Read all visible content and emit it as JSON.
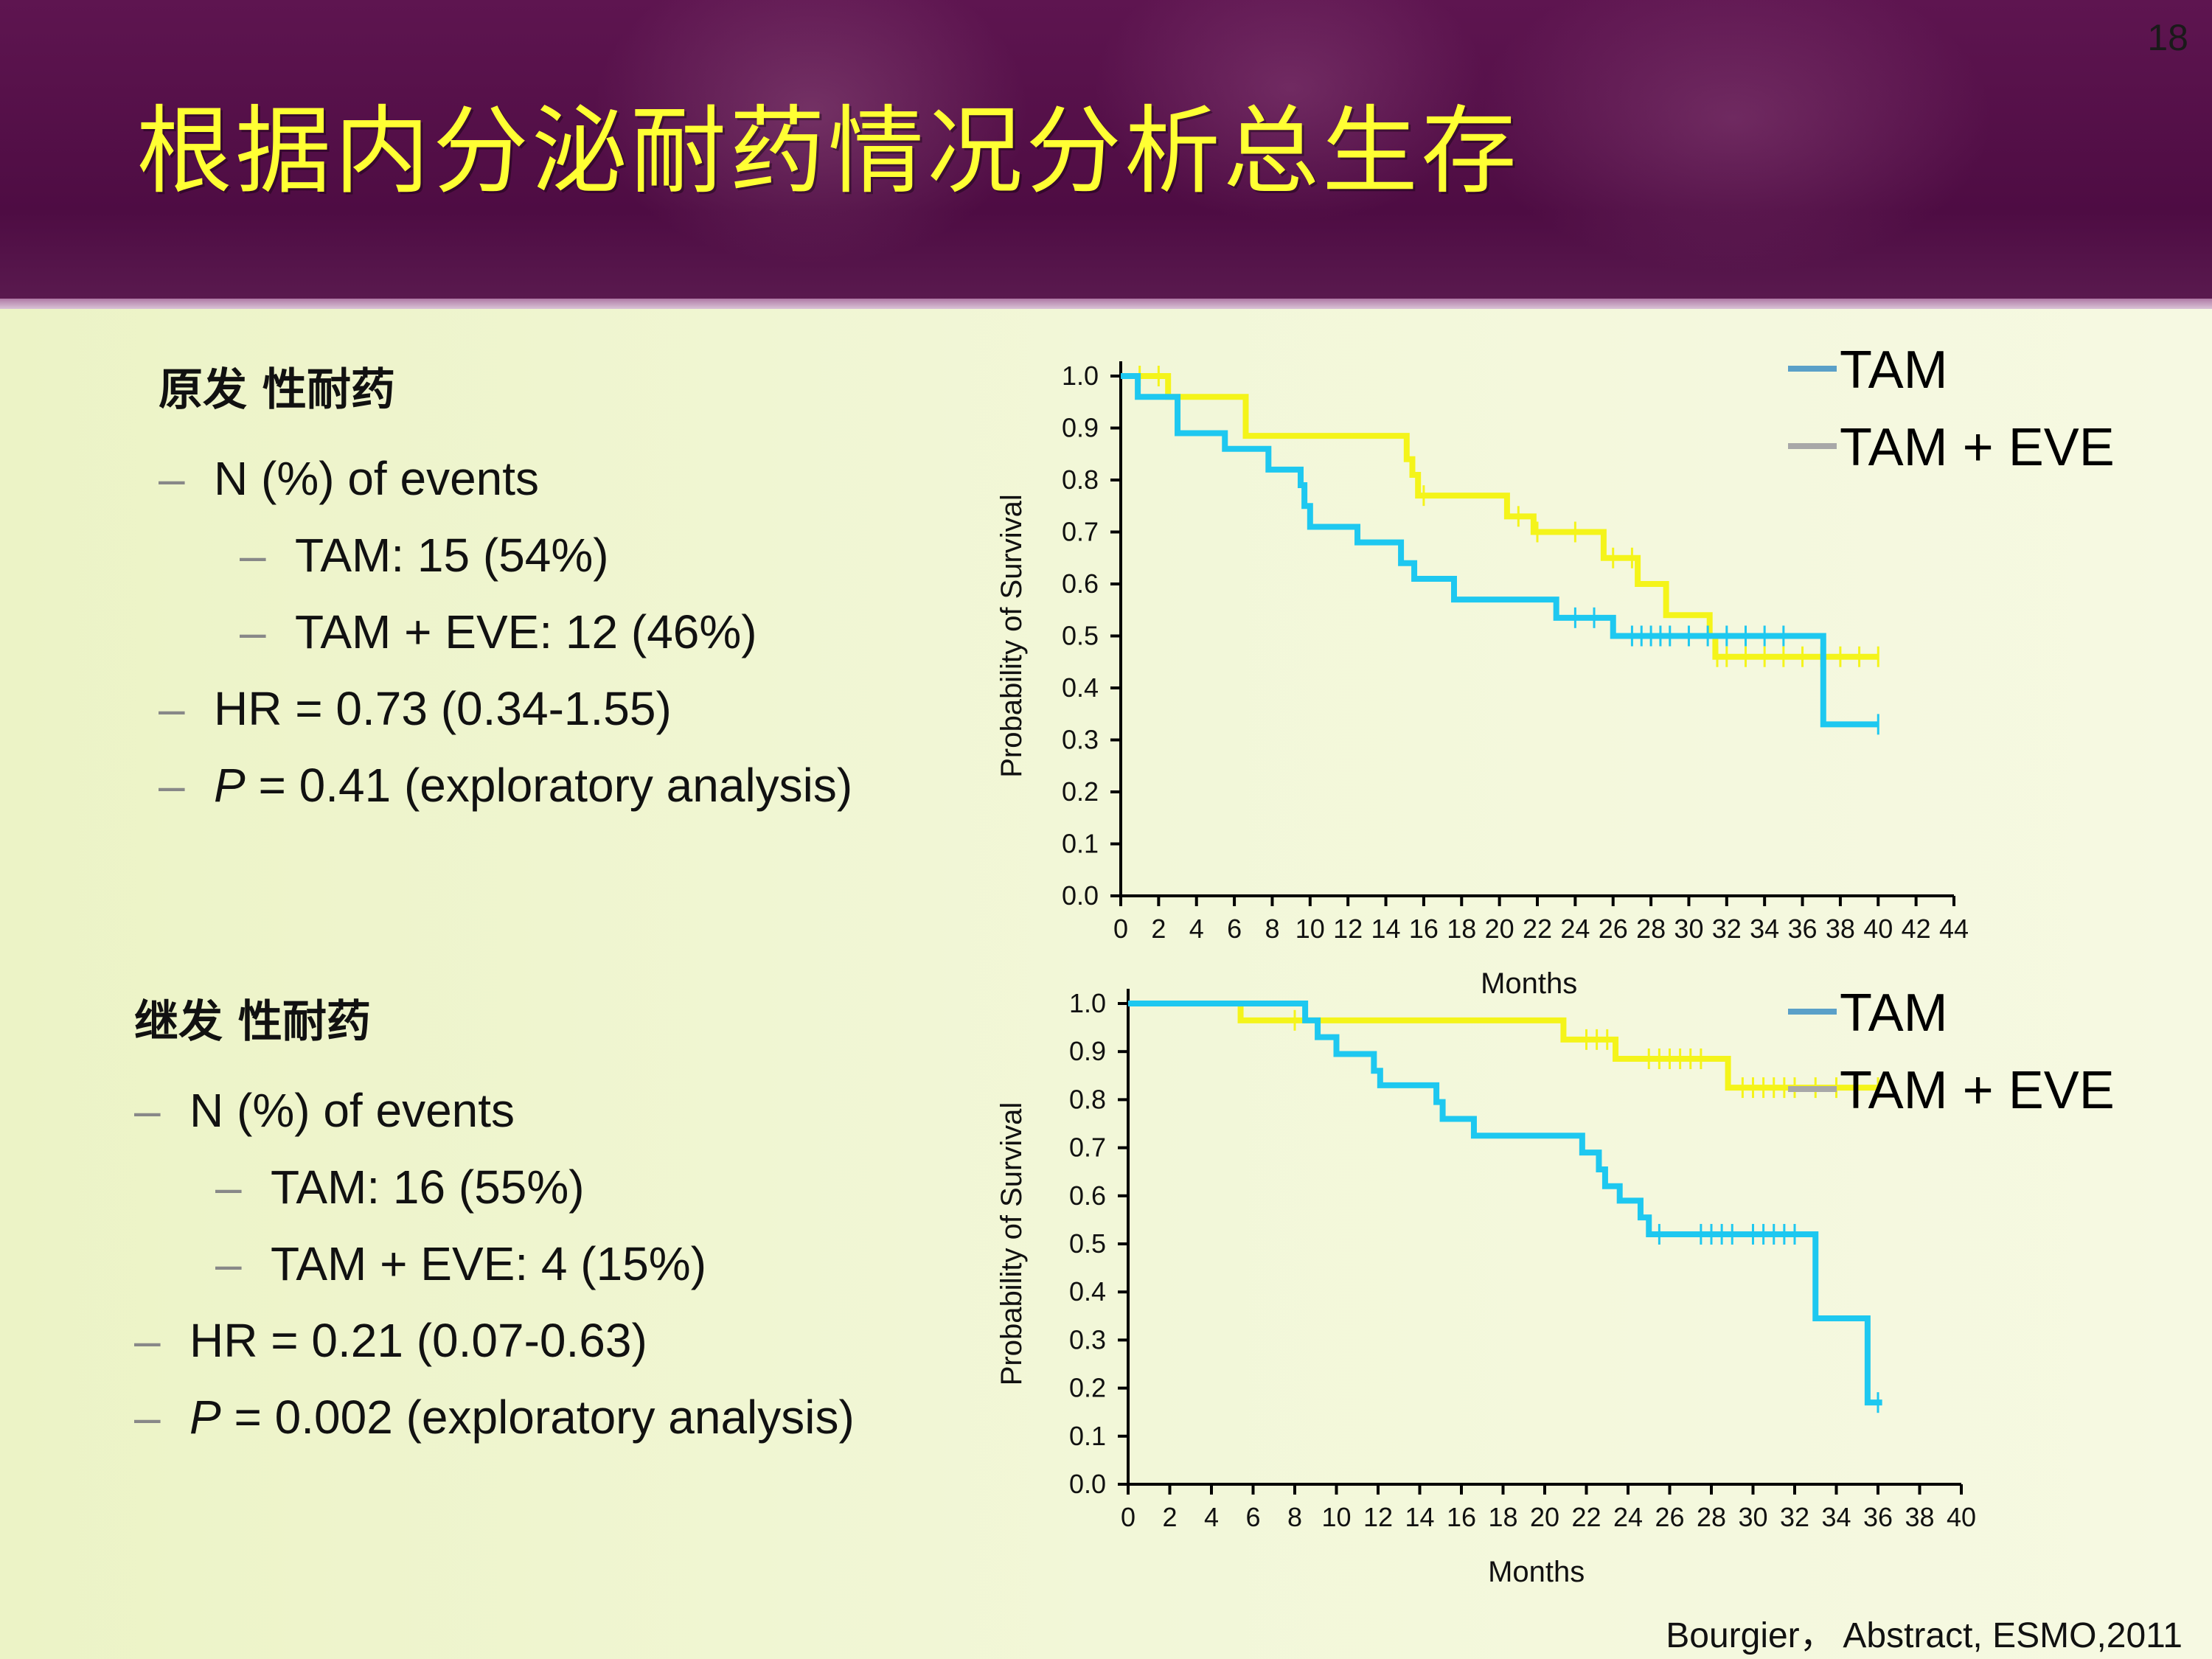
{
  "page_number": "18",
  "title": "根据内分泌耐药情况分析总生存",
  "citation": "Bourgier， Abstract, ESMO,2011",
  "colors": {
    "title": "#ffff33",
    "tam_curve": "#1ec8f0",
    "tam_eve_curve": "#f4f41a",
    "legend_tam": "#5aa0c8",
    "legend_tam_eve": "#a8a8a8"
  },
  "sections": [
    {
      "heading": "原发 性耐药",
      "bullets": [
        {
          "level": 1,
          "dash": "–",
          "text": "N (%) of events"
        },
        {
          "level": 2,
          "dash": "–",
          "text": "TAM: 15 (54%)"
        },
        {
          "level": 2,
          "dash": "–",
          "text": "TAM + EVE: 12 (46%)"
        },
        {
          "level": 1,
          "dash": "–",
          "text": "HR = 0.73 (0.34-1.55)"
        },
        {
          "level": 1,
          "dash": "–",
          "italic": "P",
          "text": " = 0.41 (exploratory analysis)"
        }
      ]
    },
    {
      "heading": "继发 性耐药",
      "bullets": [
        {
          "level": 1,
          "dash": "–",
          "text": "N (%) of events"
        },
        {
          "level": 2,
          "dash": "–",
          "text": "TAM: 16 (55%)"
        },
        {
          "level": 2,
          "dash": "–",
          "text": "TAM + EVE: 4 (15%)"
        },
        {
          "level": 1,
          "dash": "–",
          "text": "HR = 0.21 (0.07-0.63)"
        },
        {
          "level": 1,
          "dash": "–",
          "italic": "P",
          "text": " = 0.002  (exploratory analysis)"
        }
      ]
    }
  ],
  "chart_data": [
    {
      "type": "line",
      "subtype": "kaplan-meier step",
      "xlabel": "Months",
      "ylabel": "Probability of Survival",
      "xlim": [
        0,
        44
      ],
      "ylim": [
        0,
        1.0
      ],
      "x_ticks": [
        0,
        2,
        4,
        6,
        8,
        10,
        12,
        14,
        16,
        18,
        20,
        22,
        24,
        26,
        28,
        30,
        32,
        34,
        36,
        38,
        40,
        42,
        44
      ],
      "y_ticks": [
        "0.0",
        "0.1",
        "0.2",
        "0.3",
        "0.4",
        "0.5",
        "0.6",
        "0.7",
        "0.8",
        "0.9",
        "1.0"
      ],
      "legend": {
        "position": "top-right",
        "entries": [
          "TAM",
          "TAM + EVE"
        ]
      },
      "series": [
        {
          "name": "TAM",
          "color": "#1ec8f0",
          "steps": [
            [
              0,
              1.0
            ],
            [
              0.9,
              0.96
            ],
            [
              3.0,
              0.89
            ],
            [
              5.5,
              0.86
            ],
            [
              7.8,
              0.82
            ],
            [
              9.5,
              0.79
            ],
            [
              9.7,
              0.75
            ],
            [
              10.0,
              0.71
            ],
            [
              12.5,
              0.68
            ],
            [
              14.8,
              0.64
            ],
            [
              15.5,
              0.61
            ],
            [
              17.6,
              0.57
            ],
            [
              23.0,
              0.535
            ],
            [
              26.0,
              0.5
            ],
            [
              37.0,
              0.5
            ],
            [
              37.1,
              0.33
            ],
            [
              40.0,
              0.33
            ]
          ],
          "censored": [
            24,
            25,
            27,
            27.5,
            28,
            28.5,
            29,
            30,
            31,
            32,
            33,
            34,
            35,
            40
          ]
        },
        {
          "name": "TAM + EVE",
          "color": "#f4f41a",
          "steps": [
            [
              0,
              1.0
            ],
            [
              2.5,
              0.96
            ],
            [
              6.6,
              0.885
            ],
            [
              15.1,
              0.84
            ],
            [
              15.4,
              0.81
            ],
            [
              15.7,
              0.77
            ],
            [
              20.4,
              0.73
            ],
            [
              21.8,
              0.7
            ],
            [
              25.5,
              0.65
            ],
            [
              27.3,
              0.6
            ],
            [
              28.8,
              0.54
            ],
            [
              31.1,
              0.5
            ],
            [
              31.4,
              0.46
            ],
            [
              40.0,
              0.46
            ]
          ],
          "censored": [
            1,
            2,
            16,
            21,
            22,
            24,
            26,
            27,
            31.5,
            32,
            33,
            34,
            35,
            36,
            37,
            38,
            39,
            40
          ]
        }
      ]
    },
    {
      "type": "line",
      "subtype": "kaplan-meier step",
      "xlabel": "Months",
      "ylabel": "Probability of Survival",
      "xlim": [
        0,
        40
      ],
      "ylim": [
        0,
        1.0
      ],
      "x_ticks": [
        0,
        2,
        4,
        6,
        8,
        10,
        12,
        14,
        16,
        18,
        20,
        22,
        24,
        26,
        28,
        30,
        32,
        34,
        36,
        38,
        40
      ],
      "y_ticks": [
        "0.0",
        "0.1",
        "0.2",
        "0.3",
        "0.4",
        "0.5",
        "0.6",
        "0.7",
        "0.8",
        "0.9",
        "1.0"
      ],
      "legend": {
        "position": "top-right",
        "entries": [
          "TAM",
          "TAM + EVE"
        ]
      },
      "series": [
        {
          "name": "TAM",
          "color": "#1ec8f0",
          "steps": [
            [
              0,
              1.0
            ],
            [
              8.5,
              0.965
            ],
            [
              9.1,
              0.93
            ],
            [
              10.0,
              0.895
            ],
            [
              11.8,
              0.86
            ],
            [
              12.1,
              0.83
            ],
            [
              14.8,
              0.795
            ],
            [
              15.1,
              0.76
            ],
            [
              16.6,
              0.725
            ],
            [
              21.8,
              0.69
            ],
            [
              22.6,
              0.655
            ],
            [
              22.9,
              0.62
            ],
            [
              23.6,
              0.59
            ],
            [
              24.6,
              0.555
            ],
            [
              25.0,
              0.52
            ],
            [
              32.9,
              0.52
            ],
            [
              33.0,
              0.345
            ],
            [
              35.4,
              0.345
            ],
            [
              35.5,
              0.17
            ],
            [
              36.2,
              0.17
            ]
          ],
          "censored": [
            25.5,
            27.5,
            28.0,
            28.5,
            29.0,
            30.0,
            30.5,
            31.0,
            31.5,
            32.0,
            36.0
          ]
        },
        {
          "name": "TAM + EVE",
          "color": "#f4f41a",
          "steps": [
            [
              0,
              1.0
            ],
            [
              5.4,
              0.965
            ],
            [
              20.9,
              0.925
            ],
            [
              23.4,
              0.885
            ],
            [
              28.8,
              0.825
            ],
            [
              36.0,
              0.825
            ]
          ],
          "censored": [
            8.0,
            22.0,
            22.5,
            23.0,
            25.0,
            25.5,
            26.0,
            26.5,
            27.0,
            27.5,
            29.5,
            30.0,
            30.5,
            31.0,
            31.5,
            32.0,
            33.0,
            34.0,
            35.0,
            36.0
          ]
        }
      ]
    }
  ]
}
